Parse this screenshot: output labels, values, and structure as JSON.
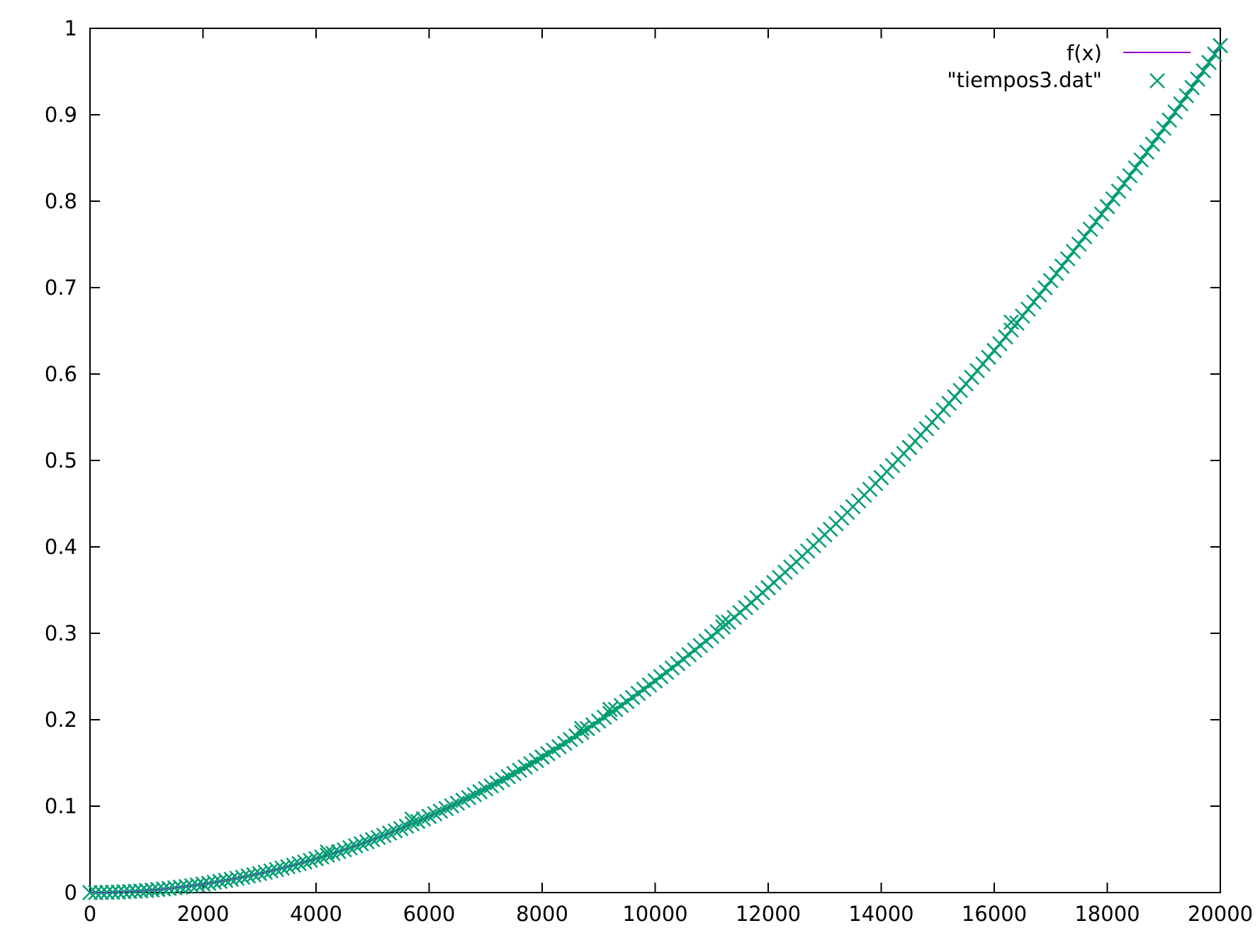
{
  "chart_data": {
    "type": "scatter",
    "title": "",
    "xlabel": "",
    "ylabel": "",
    "xlim": [
      0,
      20000
    ],
    "ylim": [
      0,
      1
    ],
    "x_ticks": [
      "0",
      "2000",
      "4000",
      "6000",
      "8000",
      "10000",
      "12000",
      "14000",
      "16000",
      "18000",
      "20000"
    ],
    "y_ticks": [
      "0",
      "0.1",
      "0.2",
      "0.3",
      "0.4",
      "0.5",
      "0.6",
      "0.7",
      "0.8",
      "0.9",
      "1"
    ],
    "grid": false,
    "legend_position": "top-right",
    "series": [
      {
        "name": "f(x)",
        "kind": "line",
        "color": "#9400d3",
        "formula": "y = 2.45e-9 * x^2",
        "x_range": [
          0,
          20000
        ]
      },
      {
        "name": "\"tiempos3.dat\"",
        "kind": "points",
        "marker": "x",
        "color": "#009e73",
        "x": [
          0,
          2000,
          4000,
          4200,
          5700,
          6000,
          8000,
          8700,
          9200,
          10000,
          11200,
          12000,
          13000,
          14000,
          14500,
          16000,
          16300,
          18000,
          20000
        ],
        "y": [
          0.0,
          0.0098,
          0.0392,
          0.047,
          0.085,
          0.0882,
          0.1568,
          0.19,
          0.212,
          0.245,
          0.313,
          0.3528,
          0.414,
          0.4802,
          0.515,
          0.6272,
          0.66,
          0.7938,
          0.98
        ]
      }
    ]
  }
}
